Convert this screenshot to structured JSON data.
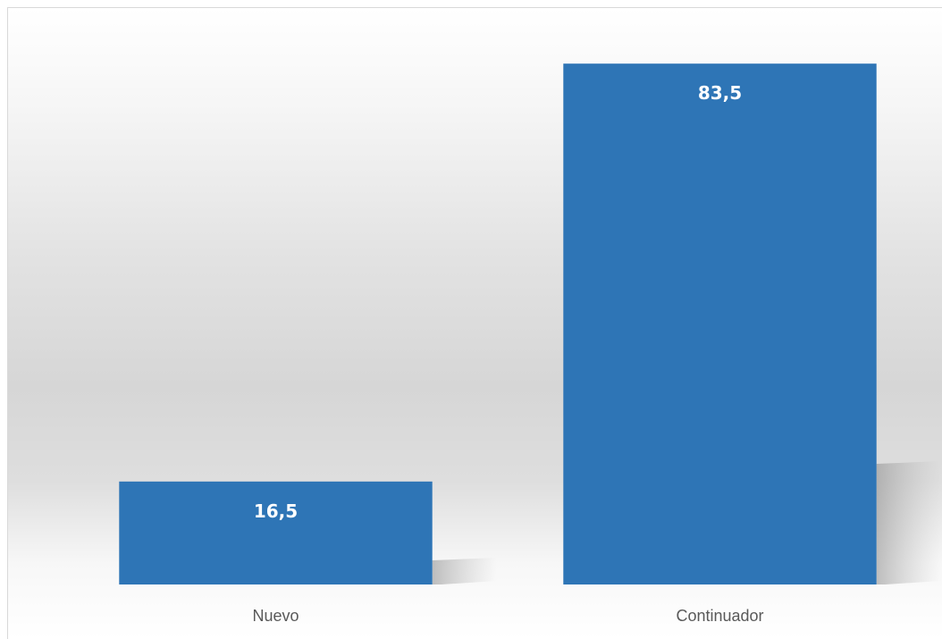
{
  "chart_data": {
    "type": "bar",
    "categories": [
      "Nuevo",
      "Continuador"
    ],
    "values": [
      16.5,
      83.5
    ],
    "value_labels": [
      "16,5",
      "83,5"
    ],
    "title": "",
    "xlabel": "",
    "ylabel": "",
    "ylim": [
      0,
      93.7
    ],
    "grid": false,
    "legend": "none",
    "bar_color": "#2e75b6"
  }
}
